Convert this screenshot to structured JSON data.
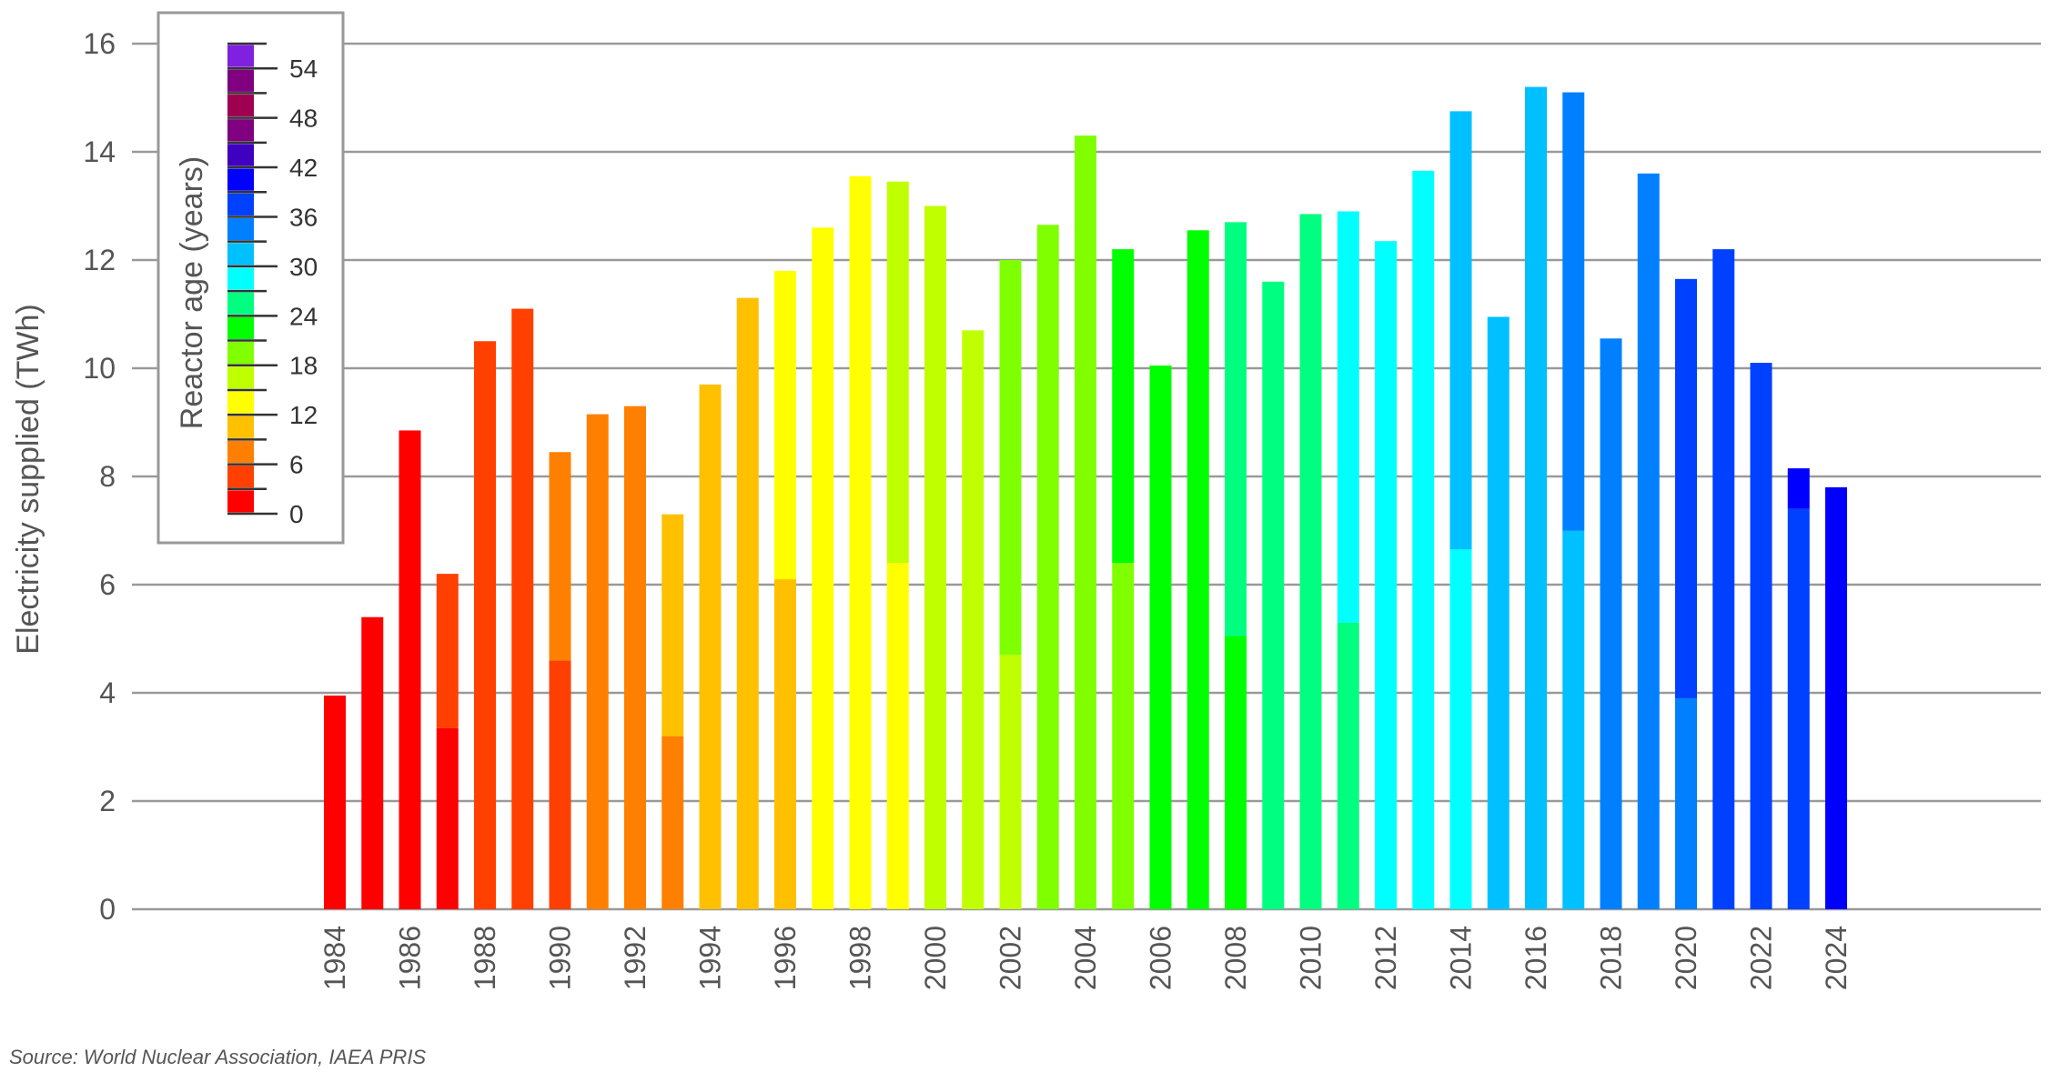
{
  "chart_data": {
    "type": "bar",
    "stacked": true,
    "title": "",
    "ylabel": "Electricity supplied (TWh)",
    "xlabel": "",
    "ylim": [
      0,
      16
    ],
    "yticks": [
      0,
      2,
      4,
      6,
      8,
      10,
      12,
      14,
      16
    ],
    "grid": true,
    "source": "Source: World Nuclear Association, IAEA PRIS",
    "colorbar": {
      "title": "Reactor age (years)",
      "range": [
        0,
        57
      ],
      "bin_size": 3,
      "tick_labels": [
        "0",
        "6",
        "12",
        "18",
        "24",
        "30",
        "36",
        "42",
        "48",
        "54"
      ],
      "tick_values": [
        0,
        6,
        12,
        18,
        24,
        30,
        36,
        42,
        48,
        54
      ],
      "colors": [
        "#FF0000",
        "#FF4000",
        "#FF8000",
        "#FFC000",
        "#FFFF00",
        "#C0FF00",
        "#80FF00",
        "#00FF00",
        "#00FF80",
        "#00FFFF",
        "#00C0FF",
        "#0080FF",
        "#0040FF",
        "#0000FF",
        "#4000C0",
        "#800080",
        "#A00050",
        "#800080",
        "#8020E0"
      ],
      "placement": "top-left"
    },
    "categories": [
      "1984",
      "1985",
      "1986",
      "1987",
      "1988",
      "1989",
      "1990",
      "1991",
      "1992",
      "1993",
      "1994",
      "1995",
      "1996",
      "1997",
      "1998",
      "1999",
      "2000",
      "2001",
      "2002",
      "2003",
      "2004",
      "2005",
      "2006",
      "2007",
      "2008",
      "2009",
      "2010",
      "2011",
      "2012",
      "2013",
      "2014",
      "2015",
      "2016",
      "2017",
      "2018",
      "2019",
      "2020",
      "2021",
      "2022",
      "2023",
      "2024"
    ],
    "xtick_labels": [
      "1984",
      "1986",
      "1988",
      "1990",
      "1992",
      "1994",
      "1996",
      "1998",
      "2000",
      "2002",
      "2004",
      "2006",
      "2008",
      "2010",
      "2012",
      "2014",
      "2016",
      "2018",
      "2020",
      "2022",
      "2024"
    ],
    "totals": [
      3.95,
      5.4,
      8.85,
      6.2,
      10.5,
      11.1,
      8.45,
      9.15,
      9.3,
      7.3,
      9.7,
      11.3,
      11.8,
      12.6,
      13.55,
      13.45,
      13.0,
      10.7,
      12.0,
      12.65,
      14.3,
      12.2,
      10.05,
      12.55,
      12.7,
      11.6,
      12.85,
      12.9,
      12.35,
      13.65,
      14.75,
      10.95,
      15.2,
      15.1,
      10.55,
      13.6,
      11.65,
      12.2,
      10.1,
      8.15,
      7.8
    ],
    "lower_segment": [
      null,
      null,
      null,
      3.35,
      null,
      null,
      4.6,
      null,
      null,
      3.2,
      null,
      null,
      6.1,
      null,
      null,
      6.4,
      null,
      null,
      4.7,
      null,
      null,
      6.4,
      null,
      null,
      5.05,
      null,
      null,
      5.3,
      null,
      null,
      6.65,
      null,
      null,
      7.0,
      null,
      null,
      3.9,
      null,
      null,
      7.4,
      null
    ],
    "lower_color": [
      "#FF0000",
      "#FF0000",
      "#FF0000",
      "#FF0000",
      "#FF4000",
      "#FF4000",
      "#FF4000",
      "#FF8000",
      "#FF8000",
      "#FF8000",
      "#FFC000",
      "#FFC000",
      "#FFC000",
      "#FFFF00",
      "#FFFF00",
      "#FFFF00",
      "#C0FF00",
      "#C0FF00",
      "#C0FF00",
      "#80FF00",
      "#80FF00",
      "#80FF00",
      "#00FF00",
      "#00FF00",
      "#00FF00",
      "#00FF80",
      "#00FF80",
      "#00FF80",
      "#00FFFF",
      "#00FFFF",
      "#00FFFF",
      "#00C0FF",
      "#00C0FF",
      "#00C0FF",
      "#0080FF",
      "#0080FF",
      "#0080FF",
      "#0040FF",
      "#0040FF",
      "#0040FF",
      "#0000FF"
    ],
    "upper_color": [
      "#FF0000",
      "#FF0000",
      "#FF0000",
      "#FF4000",
      "#FF4000",
      "#FF4000",
      "#FF8000",
      "#FF8000",
      "#FF8000",
      "#FFC000",
      "#FFC000",
      "#FFC000",
      "#FFFF00",
      "#FFFF00",
      "#FFFF00",
      "#C0FF00",
      "#C0FF00",
      "#C0FF00",
      "#80FF00",
      "#80FF00",
      "#80FF00",
      "#00FF00",
      "#00FF00",
      "#00FF00",
      "#00FF80",
      "#00FF80",
      "#00FF80",
      "#00FFFF",
      "#00FFFF",
      "#00FFFF",
      "#00C0FF",
      "#00C0FF",
      "#00C0FF",
      "#0080FF",
      "#0080FF",
      "#0080FF",
      "#0040FF",
      "#0040FF",
      "#0040FF",
      "#0000FF",
      "#0000FF"
    ]
  }
}
